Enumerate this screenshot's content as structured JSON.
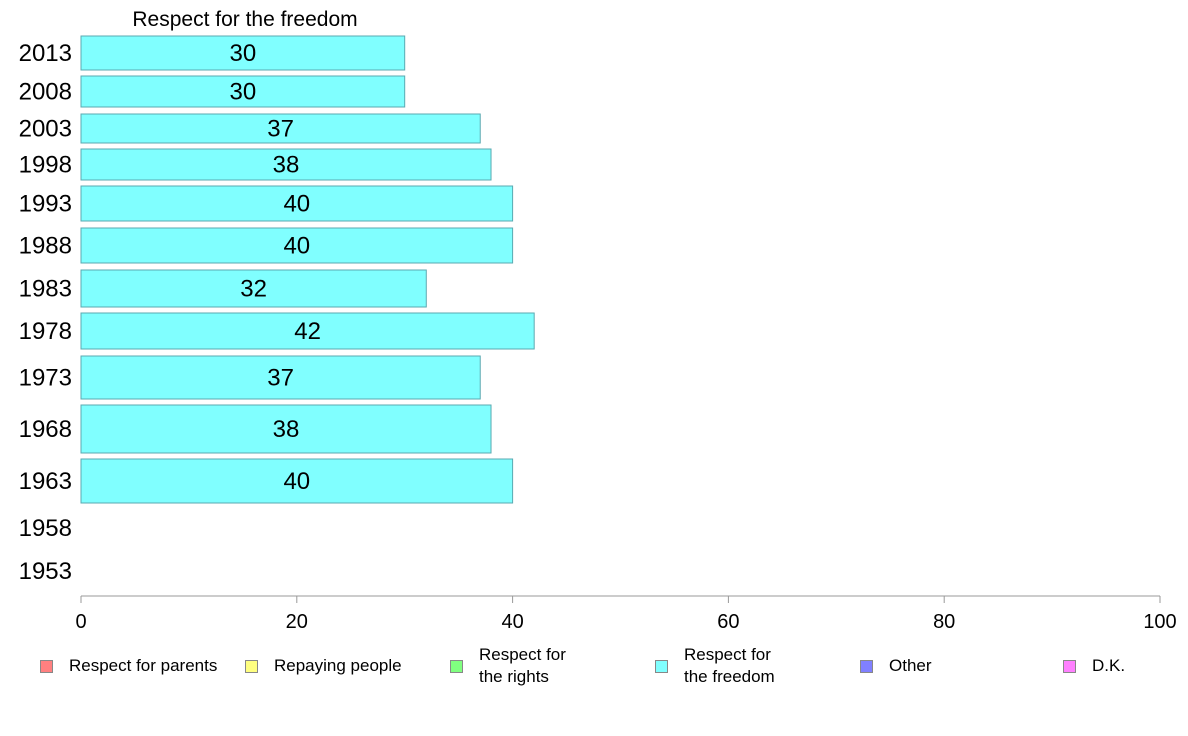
{
  "chart_data": {
    "type": "bar",
    "orientation": "horizontal",
    "title": "Respect for the freedom",
    "categories": [
      "2013",
      "2008",
      "2003",
      "1998",
      "1993",
      "1988",
      "1983",
      "1978",
      "1973",
      "1968",
      "1963",
      "1958",
      "1953"
    ],
    "values": [
      30,
      30,
      37,
      38,
      40,
      40,
      32,
      42,
      37,
      38,
      40,
      null,
      null
    ],
    "xlim": [
      0,
      100
    ],
    "xticks": [
      0,
      20,
      40,
      60,
      80,
      100
    ],
    "grid": false,
    "bar_color": "#80ffff",
    "bar_edge_color": "#5aa9b0",
    "legend_position": "bottom",
    "legend": [
      {
        "label": "Respect for parents",
        "color": "#ff8080"
      },
      {
        "label": "Repaying people",
        "color": "#ffff80"
      },
      {
        "label": "Respect for\nthe rights",
        "color": "#80ff80"
      },
      {
        "label": "Respect for\nthe freedom",
        "color": "#80ffff"
      },
      {
        "label": "Other",
        "color": "#8080ff"
      },
      {
        "label": "D.K.",
        "color": "#ff80ff"
      }
    ]
  }
}
